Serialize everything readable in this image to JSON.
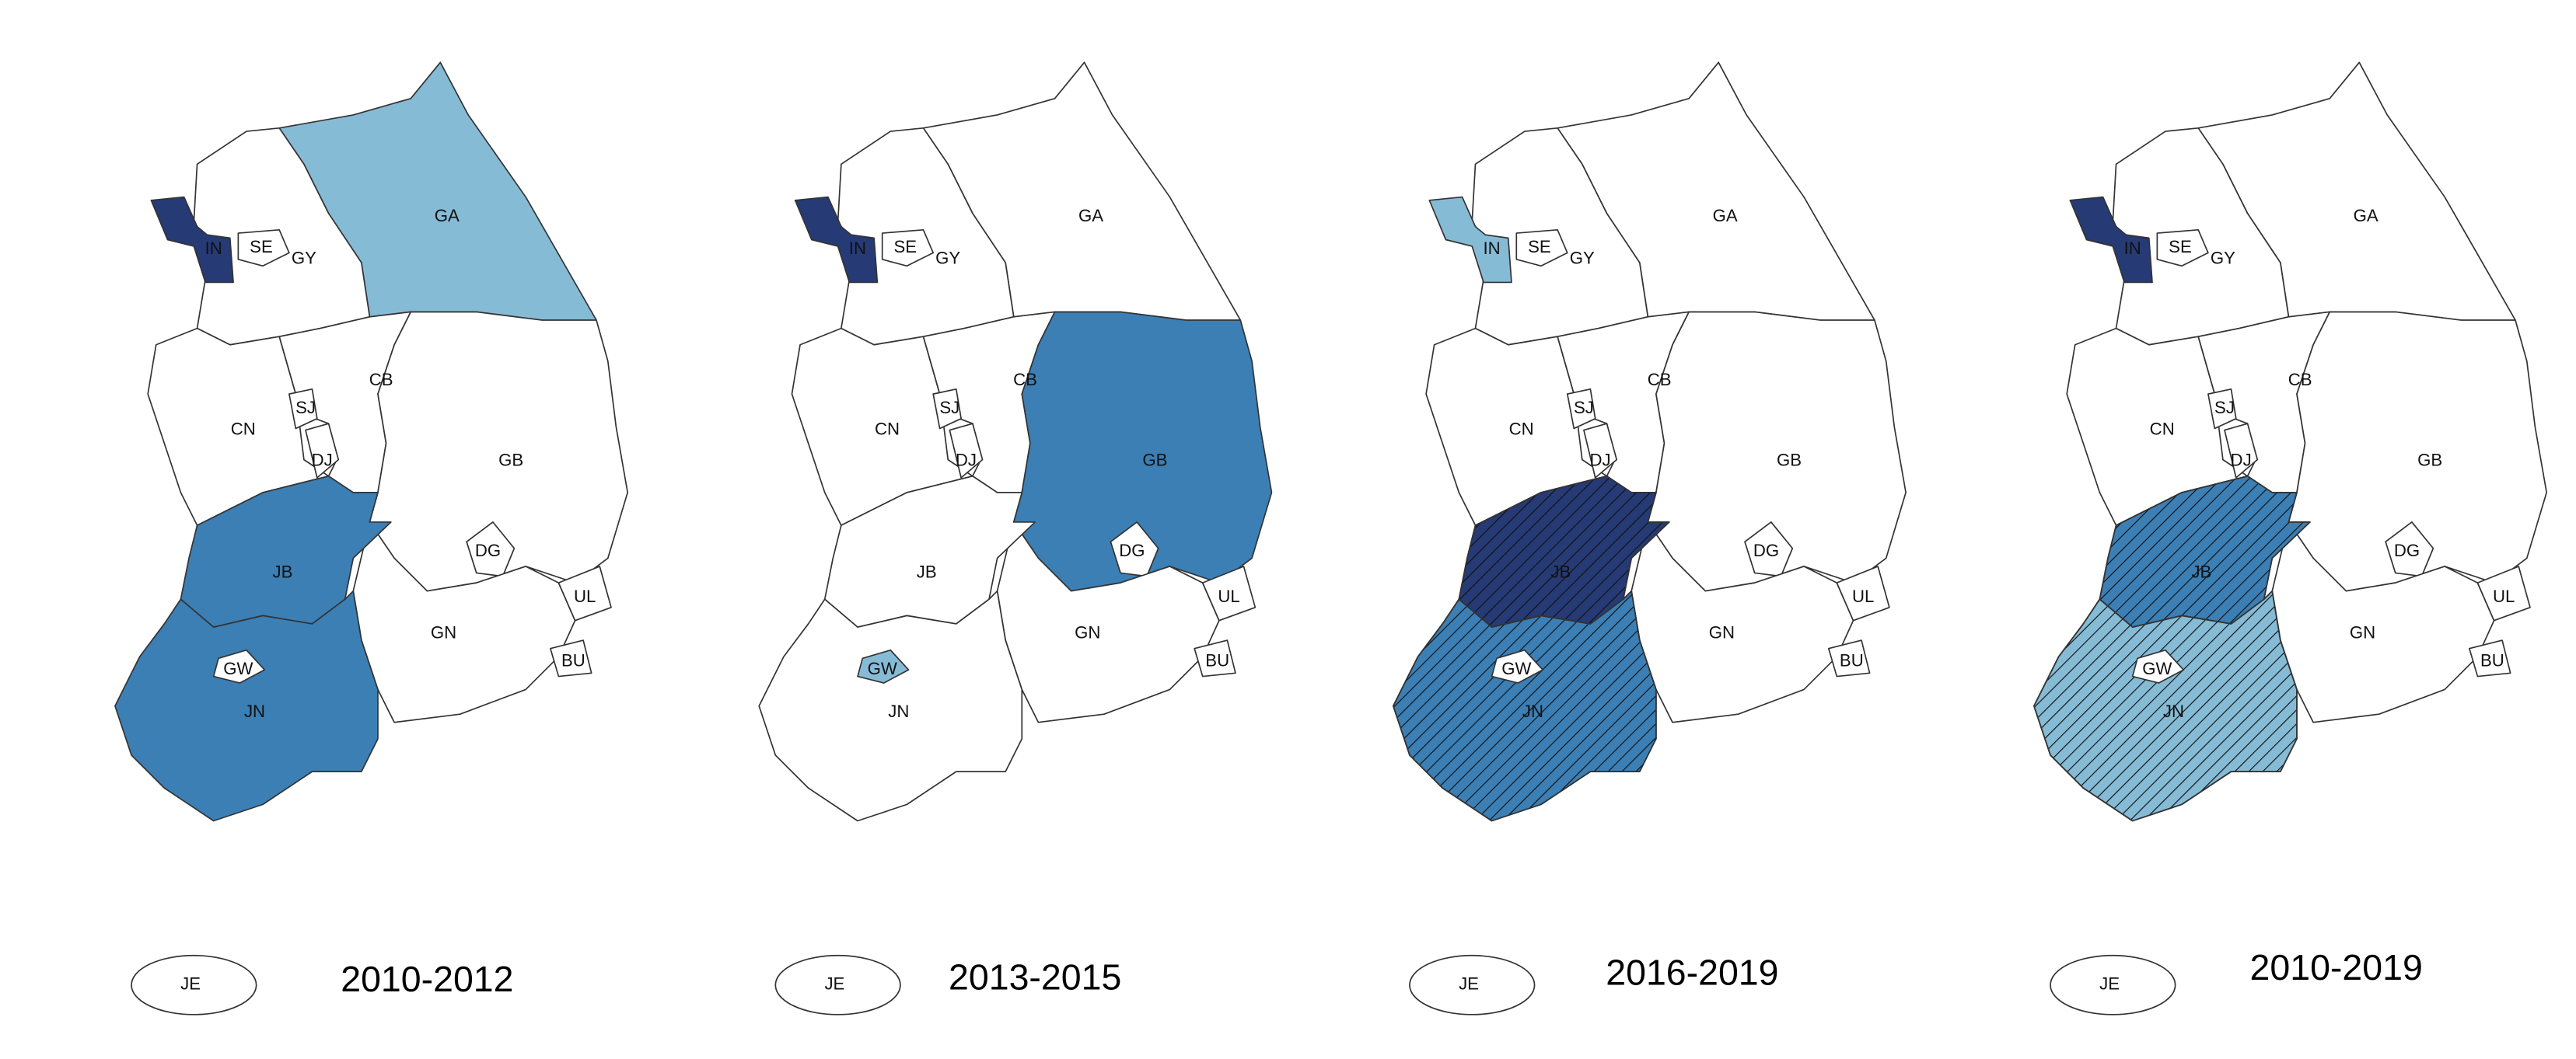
{
  "regions": [
    "GA",
    "GY",
    "IN",
    "SE",
    "CN",
    "CB",
    "SJ",
    "DJ",
    "GB",
    "DG",
    "GN",
    "UL",
    "BU",
    "JB",
    "JN",
    "GW",
    "JE"
  ],
  "panels": [
    {
      "title": "2010-2012",
      "fills": [
        "#86bbd6",
        null,
        "#263a75",
        null,
        null,
        null,
        null,
        null,
        null,
        null,
        null,
        null,
        null,
        "#3b7fb5",
        "#3b7fb5",
        null,
        null
      ],
      "hatched": [
        false,
        false,
        false,
        false,
        false,
        false,
        false,
        false,
        false,
        false,
        false,
        false,
        false,
        false,
        false,
        false,
        false
      ]
    },
    {
      "title": "2013-2015",
      "fills": [
        null,
        null,
        "#263a75",
        null,
        null,
        null,
        null,
        null,
        "#3b7fb5",
        null,
        null,
        null,
        null,
        null,
        null,
        "#86bbd6",
        null
      ],
      "hatched": [
        false,
        false,
        false,
        false,
        false,
        false,
        false,
        false,
        false,
        false,
        false,
        false,
        false,
        false,
        false,
        false,
        false
      ]
    },
    {
      "title": "2016-2019",
      "fills": [
        null,
        null,
        "#86bbd6",
        null,
        null,
        null,
        null,
        null,
        null,
        null,
        null,
        null,
        null,
        "#263a75",
        "#3b7fb5",
        null,
        null
      ],
      "hatched": [
        false,
        false,
        false,
        false,
        false,
        false,
        false,
        false,
        false,
        false,
        false,
        false,
        false,
        true,
        true,
        false,
        false
      ]
    },
    {
      "title": "2010-2019",
      "fills": [
        null,
        null,
        "#263a75",
        null,
        null,
        null,
        null,
        null,
        null,
        null,
        null,
        null,
        null,
        "#3b7fb5",
        "#86bbd6",
        null,
        null
      ],
      "hatched": [
        false,
        false,
        false,
        false,
        false,
        false,
        false,
        false,
        false,
        false,
        false,
        false,
        false,
        true,
        true,
        false,
        false
      ]
    }
  ]
}
